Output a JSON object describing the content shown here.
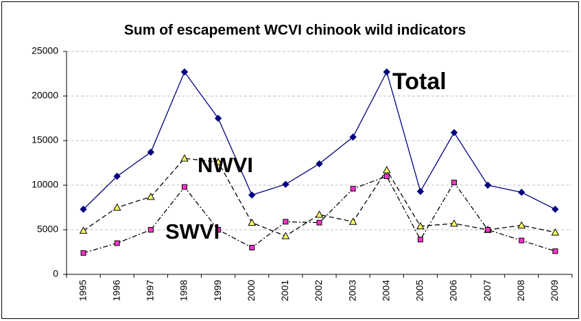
{
  "chart_data": {
    "type": "line",
    "title": "Sum of escapement WCVI chinook wild indicators",
    "categories": [
      "1995",
      "1996",
      "1997",
      "1998",
      "1999",
      "2000",
      "2001",
      "2002",
      "2003",
      "2004",
      "2005",
      "2006",
      "2007",
      "2008",
      "2009"
    ],
    "series": [
      {
        "name": "Total",
        "color": "#000080",
        "marker": "diamond",
        "marker_color": "#000080",
        "dash": "solid",
        "values": [
          7300,
          11000,
          13700,
          22700,
          17500,
          8900,
          10100,
          12400,
          15400,
          22700,
          9300,
          15900,
          10000,
          9200,
          7300
        ]
      },
      {
        "name": "NWVI",
        "color": "#000000",
        "marker": "triangle",
        "marker_color": "#ffff66",
        "dash": "dashed",
        "values": [
          4900,
          7500,
          8700,
          13000,
          12600,
          5800,
          4300,
          6700,
          5900,
          11700,
          5400,
          5700,
          5000,
          5500,
          4700
        ]
      },
      {
        "name": "SWVI",
        "color": "#000000",
        "marker": "square",
        "marker_color": "#ff33cc",
        "dash": "dashdot",
        "values": [
          2400,
          3500,
          5000,
          9800,
          5000,
          3000,
          5900,
          5800,
          9600,
          11000,
          3900,
          10300,
          5000,
          3800,
          2600
        ]
      }
    ],
    "ylim": [
      0,
      25000
    ],
    "yticks": [
      0,
      5000,
      10000,
      15000,
      20000,
      25000
    ],
    "grid": true
  }
}
